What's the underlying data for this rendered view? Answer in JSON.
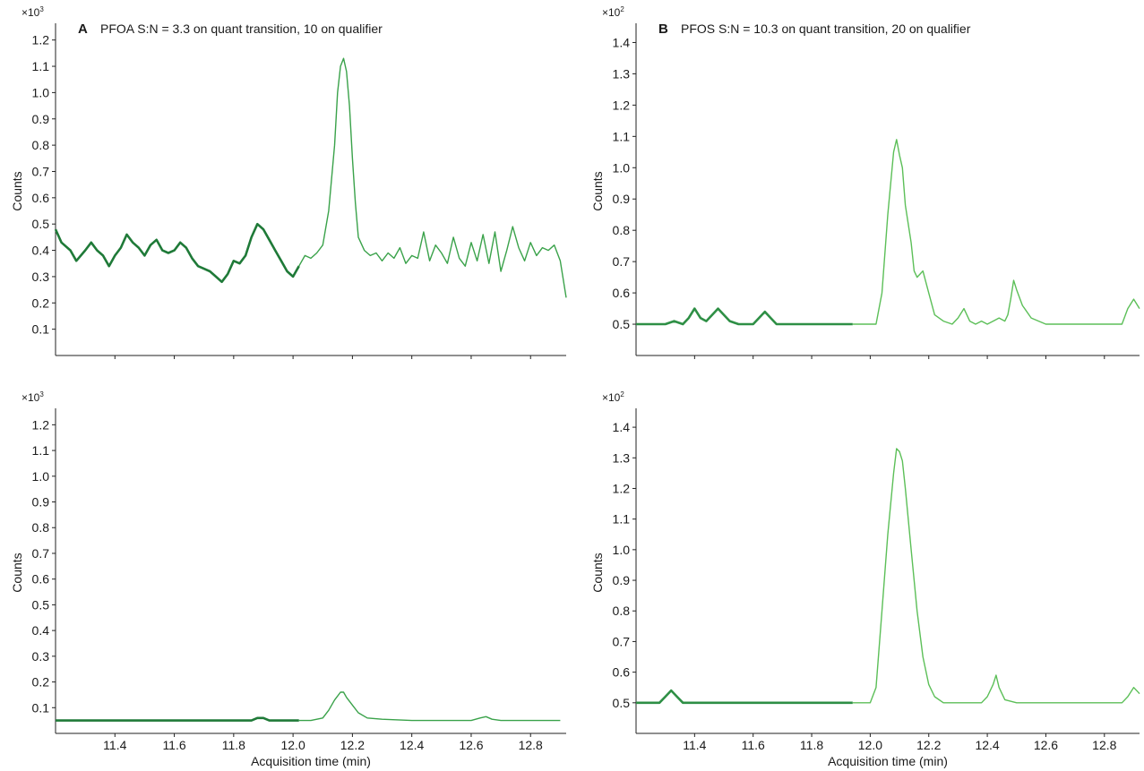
{
  "chart_data": [
    {
      "type": "line",
      "panel": "A",
      "title": "PFOA S:N = 3.3 on quant transition, 10 on qualifier",
      "ylabel": "Counts",
      "xlabel": "",
      "multiplier": "×10",
      "multiplier_exp": "3",
      "xlim": [
        11.2,
        12.92
      ],
      "ylim": [
        0.0,
        1.25
      ],
      "xticks": [
        11.4,
        11.6,
        11.8,
        12.0,
        12.2,
        12.4,
        12.6,
        12.8
      ],
      "yticks": [
        0.1,
        0.2,
        0.3,
        0.4,
        0.5,
        0.6,
        0.7,
        0.8,
        0.9,
        1.0,
        1.1,
        1.2
      ],
      "tick_decimals": 1,
      "show_xtick_labels": false,
      "colors": {
        "bold": "#1f7a38",
        "thin": "#3aa24a"
      },
      "bold_until": 12.02,
      "series": [
        {
          "x": [
            11.2,
            11.22,
            11.25,
            11.27,
            11.3,
            11.32,
            11.34,
            11.36,
            11.38,
            11.4,
            11.42,
            11.44,
            11.46,
            11.48,
            11.5,
            11.52,
            11.54,
            11.56,
            11.58,
            11.6,
            11.62,
            11.64,
            11.66,
            11.68,
            11.7,
            11.72,
            11.74,
            11.76,
            11.78,
            11.8,
            11.82,
            11.84,
            11.86,
            11.88,
            11.9,
            11.92,
            11.94,
            11.96,
            11.98,
            12.0,
            12.02,
            12.04,
            12.06,
            12.08,
            12.1,
            12.12,
            12.14,
            12.15,
            12.16,
            12.17,
            12.18,
            12.19,
            12.2,
            12.21,
            12.22,
            12.24,
            12.26,
            12.28,
            12.3,
            12.32,
            12.34,
            12.36,
            12.38,
            12.4,
            12.42,
            12.44,
            12.46,
            12.48,
            12.5,
            12.52,
            12.54,
            12.56,
            12.58,
            12.6,
            12.62,
            12.64,
            12.66,
            12.68,
            12.7,
            12.72,
            12.74,
            12.76,
            12.78,
            12.8,
            12.82,
            12.84,
            12.86,
            12.88,
            12.9,
            12.92
          ],
          "y": [
            0.48,
            0.43,
            0.4,
            0.36,
            0.4,
            0.43,
            0.4,
            0.38,
            0.34,
            0.38,
            0.41,
            0.46,
            0.43,
            0.41,
            0.38,
            0.42,
            0.44,
            0.4,
            0.39,
            0.4,
            0.43,
            0.41,
            0.37,
            0.34,
            0.33,
            0.32,
            0.3,
            0.28,
            0.31,
            0.36,
            0.35,
            0.38,
            0.45,
            0.5,
            0.48,
            0.44,
            0.4,
            0.36,
            0.32,
            0.3,
            0.34,
            0.38,
            0.37,
            0.39,
            0.42,
            0.55,
            0.8,
            1.0,
            1.1,
            1.13,
            1.08,
            0.95,
            0.75,
            0.58,
            0.45,
            0.4,
            0.38,
            0.39,
            0.36,
            0.39,
            0.37,
            0.41,
            0.35,
            0.38,
            0.37,
            0.47,
            0.36,
            0.42,
            0.39,
            0.35,
            0.45,
            0.37,
            0.34,
            0.43,
            0.36,
            0.46,
            0.35,
            0.47,
            0.32,
            0.4,
            0.49,
            0.41,
            0.36,
            0.43,
            0.38,
            0.41,
            0.4,
            0.42,
            0.36,
            0.22
          ]
        }
      ]
    },
    {
      "type": "line",
      "panel": "B",
      "title": "PFOS S:N = 10.3 on quant transition, 20 on qualifier",
      "ylabel": "Counts",
      "xlabel": "",
      "multiplier": "×10",
      "multiplier_exp": "2",
      "xlim": [
        11.2,
        12.92
      ],
      "ylim": [
        0.4,
        1.45
      ],
      "xticks": [
        11.4,
        11.6,
        11.8,
        12.0,
        12.2,
        12.4,
        12.6,
        12.8
      ],
      "yticks": [
        0.5,
        0.6,
        0.7,
        0.8,
        0.9,
        1.0,
        1.1,
        1.2,
        1.3,
        1.4
      ],
      "tick_decimals": 1,
      "show_xtick_labels": false,
      "colors": {
        "bold": "#2e8f45",
        "thin": "#5cbf58"
      },
      "bold_until": 11.94,
      "series": [
        {
          "x": [
            11.2,
            11.3,
            11.33,
            11.36,
            11.38,
            11.4,
            11.42,
            11.44,
            11.46,
            11.48,
            11.5,
            11.52,
            11.55,
            11.6,
            11.62,
            11.64,
            11.66,
            11.68,
            11.7,
            11.8,
            11.9,
            11.94,
            12.0,
            12.02,
            12.04,
            12.06,
            12.08,
            12.09,
            12.1,
            12.11,
            12.12,
            12.14,
            12.15,
            12.16,
            12.18,
            12.2,
            12.22,
            12.25,
            12.28,
            12.3,
            12.32,
            12.34,
            12.36,
            12.38,
            12.4,
            12.42,
            12.44,
            12.46,
            12.47,
            12.48,
            12.49,
            12.5,
            12.52,
            12.55,
            12.6,
            12.7,
            12.8,
            12.86,
            12.88,
            12.9,
            12.92
          ],
          "y": [
            0.5,
            0.5,
            0.51,
            0.5,
            0.52,
            0.55,
            0.52,
            0.51,
            0.53,
            0.55,
            0.53,
            0.51,
            0.5,
            0.5,
            0.52,
            0.54,
            0.52,
            0.5,
            0.5,
            0.5,
            0.5,
            0.5,
            0.5,
            0.5,
            0.6,
            0.85,
            1.05,
            1.09,
            1.04,
            1.0,
            0.88,
            0.76,
            0.67,
            0.65,
            0.67,
            0.6,
            0.53,
            0.51,
            0.5,
            0.52,
            0.55,
            0.51,
            0.5,
            0.51,
            0.5,
            0.51,
            0.52,
            0.51,
            0.53,
            0.58,
            0.64,
            0.61,
            0.56,
            0.52,
            0.5,
            0.5,
            0.5,
            0.5,
            0.55,
            0.58,
            0.55
          ]
        }
      ]
    },
    {
      "type": "line",
      "panel": "A",
      "title": "",
      "ylabel": "Counts",
      "xlabel": "Acquisition time (min)",
      "multiplier": "×10",
      "multiplier_exp": "3",
      "xlim": [
        11.2,
        12.92
      ],
      "ylim": [
        0.0,
        1.25
      ],
      "xticks": [
        11.4,
        11.6,
        11.8,
        12.0,
        12.2,
        12.4,
        12.6,
        12.8
      ],
      "yticks": [
        0.1,
        0.2,
        0.3,
        0.4,
        0.5,
        0.6,
        0.7,
        0.8,
        0.9,
        1.0,
        1.1,
        1.2
      ],
      "tick_decimals": 1,
      "show_xtick_labels": true,
      "colors": {
        "bold": "#1f7a38",
        "thin": "#3aa24a"
      },
      "bold_until": 12.02,
      "series": [
        {
          "x": [
            11.2,
            11.4,
            11.6,
            11.8,
            11.86,
            11.88,
            11.9,
            11.92,
            11.94,
            12.0,
            12.02,
            12.06,
            12.1,
            12.12,
            12.14,
            12.16,
            12.17,
            12.18,
            12.2,
            12.22,
            12.25,
            12.3,
            12.4,
            12.5,
            12.6,
            12.63,
            12.65,
            12.67,
            12.7,
            12.8,
            12.9
          ],
          "y": [
            0.05,
            0.05,
            0.05,
            0.05,
            0.05,
            0.06,
            0.06,
            0.05,
            0.05,
            0.05,
            0.05,
            0.05,
            0.06,
            0.09,
            0.13,
            0.16,
            0.16,
            0.14,
            0.11,
            0.08,
            0.06,
            0.055,
            0.05,
            0.05,
            0.05,
            0.06,
            0.065,
            0.055,
            0.05,
            0.05,
            0.05
          ]
        }
      ]
    },
    {
      "type": "line",
      "panel": "B",
      "title": "",
      "ylabel": "Counts",
      "xlabel": "Acquisition time (min)",
      "multiplier": "×10",
      "multiplier_exp": "2",
      "xlim": [
        11.2,
        12.92
      ],
      "ylim": [
        0.4,
        1.45
      ],
      "xticks": [
        11.4,
        11.6,
        11.8,
        12.0,
        12.2,
        12.4,
        12.6,
        12.8
      ],
      "yticks": [
        0.5,
        0.6,
        0.7,
        0.8,
        0.9,
        1.0,
        1.1,
        1.2,
        1.3,
        1.4
      ],
      "tick_decimals": 1,
      "show_xtick_labels": true,
      "colors": {
        "bold": "#2e8f45",
        "thin": "#5cbf58"
      },
      "bold_until": 11.94,
      "series": [
        {
          "x": [
            11.2,
            11.28,
            11.3,
            11.32,
            11.34,
            11.36,
            11.4,
            11.5,
            11.7,
            11.94,
            12.0,
            12.02,
            12.04,
            12.06,
            12.08,
            12.09,
            12.1,
            12.11,
            12.12,
            12.14,
            12.16,
            12.18,
            12.2,
            12.22,
            12.25,
            12.3,
            12.38,
            12.4,
            12.42,
            12.43,
            12.44,
            12.46,
            12.5,
            12.6,
            12.7,
            12.8,
            12.86,
            12.88,
            12.9,
            12.92
          ],
          "y": [
            0.5,
            0.5,
            0.52,
            0.54,
            0.52,
            0.5,
            0.5,
            0.5,
            0.5,
            0.5,
            0.5,
            0.55,
            0.8,
            1.05,
            1.25,
            1.33,
            1.32,
            1.29,
            1.2,
            1.0,
            0.8,
            0.65,
            0.56,
            0.52,
            0.5,
            0.5,
            0.5,
            0.52,
            0.56,
            0.59,
            0.55,
            0.51,
            0.5,
            0.5,
            0.5,
            0.5,
            0.5,
            0.52,
            0.55,
            0.53
          ]
        }
      ]
    }
  ]
}
